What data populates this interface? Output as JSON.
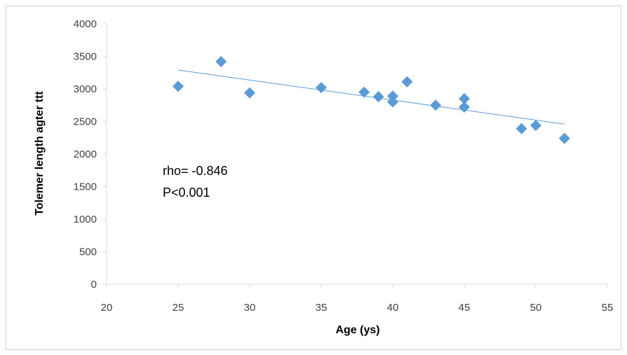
{
  "chart_data": {
    "type": "scatter",
    "xlabel": "Age (ys)",
    "ylabel": "Tolemer length agter ttt",
    "xlim": [
      20,
      55
    ],
    "ylim": [
      0,
      4000
    ],
    "xticks": [
      "20",
      "25",
      "30",
      "35",
      "40",
      "45",
      "50",
      "55"
    ],
    "yticks": [
      "0",
      "500",
      "1000",
      "1500",
      "2000",
      "2500",
      "3000",
      "3500",
      "4000"
    ],
    "grid": false,
    "points": [
      {
        "x": 25,
        "y": 3040
      },
      {
        "x": 28,
        "y": 3420
      },
      {
        "x": 30,
        "y": 2940
      },
      {
        "x": 35,
        "y": 3020
      },
      {
        "x": 38,
        "y": 2950
      },
      {
        "x": 39,
        "y": 2880
      },
      {
        "x": 40,
        "y": 2890
      },
      {
        "x": 40,
        "y": 2800
      },
      {
        "x": 41,
        "y": 3110
      },
      {
        "x": 43,
        "y": 2750
      },
      {
        "x": 45,
        "y": 2850
      },
      {
        "x": 45,
        "y": 2720
      },
      {
        "x": 49,
        "y": 2390
      },
      {
        "x": 50,
        "y": 2440
      },
      {
        "x": 52,
        "y": 2240
      }
    ],
    "trendline": {
      "x": [
        25,
        52
      ],
      "y": [
        3290,
        2460
      ]
    },
    "annotation": {
      "line1": "rho= -0.846",
      "line2": "P<0.001"
    },
    "marker_color": "#5B9BD5",
    "trendline_color": "#5B9BD5",
    "axis_color": "#d9d9d9"
  }
}
